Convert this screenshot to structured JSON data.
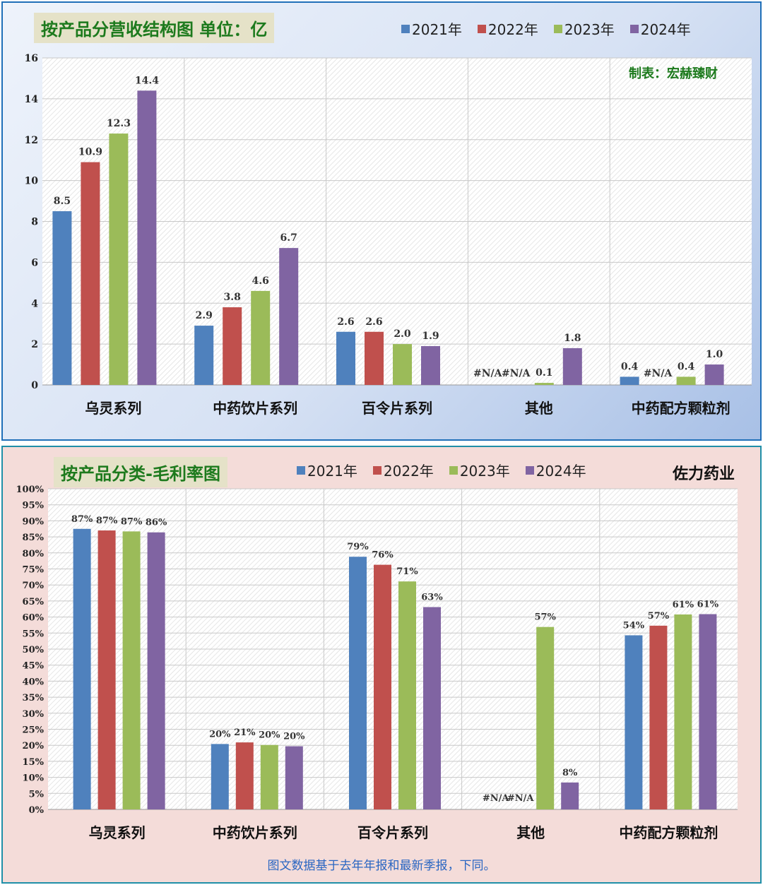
{
  "panels": [
    {
      "title": "按产品分营收结构图  单位：亿",
      "legend": [
        "2021年",
        "2022年",
        "2023年",
        "2024年"
      ],
      "note": "制表：宏赫臻财"
    },
    {
      "title": "按产品分类-毛利率图",
      "legend": [
        "2021年",
        "2022年",
        "2023年",
        "2024年"
      ],
      "note": "佐力药业"
    }
  ],
  "footer": "图文数据基于去年年报和最新季报，下同。",
  "colors": {
    "2021年": "#4f81bd",
    "2022年": "#c0504d",
    "2023年": "#9bbb59",
    "2024年": "#8064a2"
  },
  "chart_data": [
    {
      "type": "bar",
      "title": "按产品分营收结构图  单位：亿",
      "categories": [
        "乌灵系列",
        "中药饮片系列",
        "百令片系列",
        "其他",
        "中药配方颗粒剂"
      ],
      "series": [
        {
          "name": "2021年",
          "values": [
            8.5,
            2.9,
            2.6,
            null,
            0.4
          ],
          "labels": [
            "8.5",
            "2.9",
            "2.6",
            "#N/A",
            "0.4"
          ]
        },
        {
          "name": "2022年",
          "values": [
            10.9,
            3.8,
            2.6,
            null,
            null
          ],
          "labels": [
            "10.9",
            "3.8",
            "2.6",
            "#N/A",
            "#N/A"
          ]
        },
        {
          "name": "2023年",
          "values": [
            12.3,
            4.6,
            2.0,
            0.1,
            0.4
          ],
          "labels": [
            "12.3",
            "4.6",
            "2.0",
            "0.1",
            "0.4"
          ]
        },
        {
          "name": "2024年",
          "values": [
            14.4,
            6.7,
            1.9,
            1.8,
            1.0
          ],
          "labels": [
            "14.4",
            "6.7",
            "1.9",
            "1.8",
            "1.0"
          ]
        }
      ],
      "ylim": [
        0,
        16
      ],
      "yticks": [
        "0",
        "2",
        "4",
        "6",
        "8",
        "10",
        "12",
        "14",
        "16"
      ],
      "grid": true,
      "legend_position": "top-right"
    },
    {
      "type": "bar",
      "title": "按产品分类-毛利率图",
      "categories": [
        "乌灵系列",
        "中药饮片系列",
        "百令片系列",
        "其他",
        "中药配方颗粒剂"
      ],
      "series": [
        {
          "name": "2021年",
          "values": [
            87.5,
            20.4,
            78.8,
            null,
            54.3
          ],
          "labels": [
            "87%",
            "20%",
            "79%",
            "#N/A",
            "54%"
          ]
        },
        {
          "name": "2022年",
          "values": [
            87.0,
            20.9,
            76.3,
            null,
            57.3
          ],
          "labels": [
            "87%",
            "21%",
            "76%",
            "#N/A",
            "57%"
          ]
        },
        {
          "name": "2023年",
          "values": [
            86.7,
            20.1,
            71.1,
            56.9,
            60.8
          ],
          "labels": [
            "87%",
            "20%",
            "71%",
            "57%",
            "61%"
          ]
        },
        {
          "name": "2024年",
          "values": [
            86.4,
            19.7,
            63.1,
            8.4,
            60.9
          ],
          "labels": [
            "86%",
            "20%",
            "63%",
            "8%",
            "61%"
          ]
        }
      ],
      "ylim": [
        0,
        100
      ],
      "yticks": [
        "0%",
        "5%",
        "10%",
        "15%",
        "20%",
        "25%",
        "30%",
        "35%",
        "40%",
        "45%",
        "50%",
        "55%",
        "60%",
        "65%",
        "70%",
        "75%",
        "80%",
        "85%",
        "90%",
        "95%",
        "100%"
      ],
      "grid": true,
      "legend_position": "top-center"
    }
  ]
}
